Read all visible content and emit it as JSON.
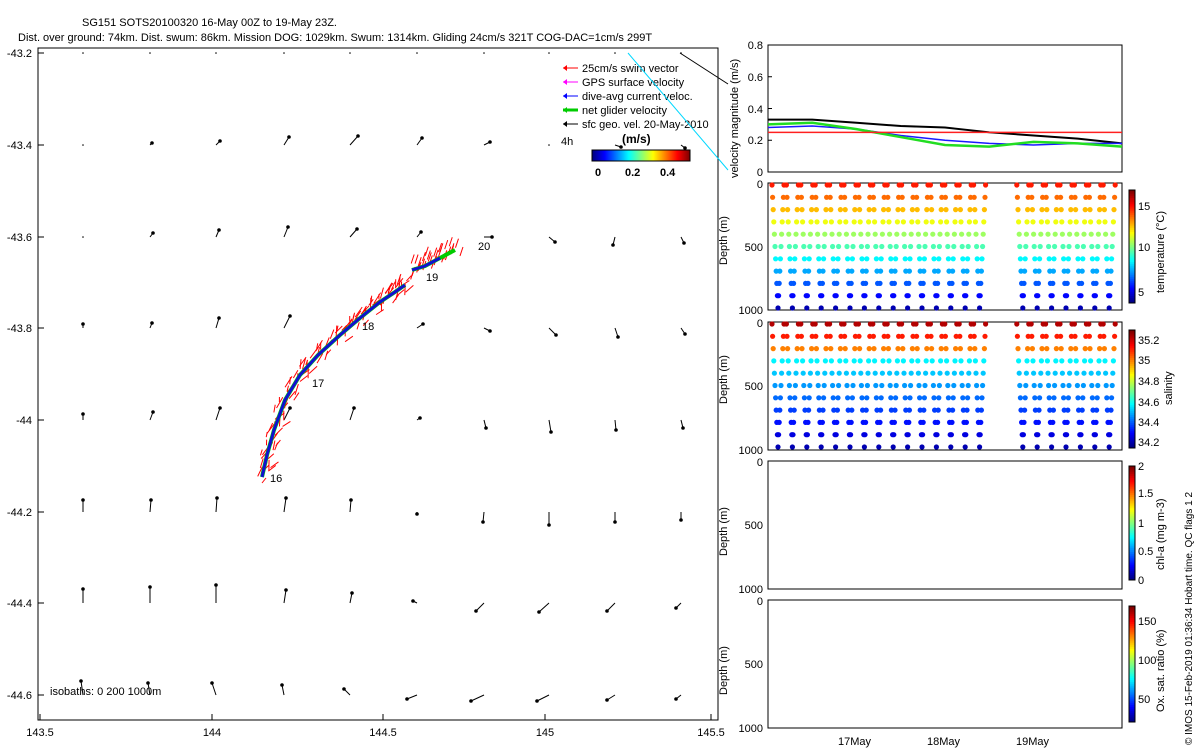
{
  "header": {
    "title_line1": "SG151 SOTS20100320 16-May 00Z to 19-May 23Z.",
    "title_line2": "Dist. over ground: 74km. Dist. swum: 86km. Mission DOG: 1029km. Swum: 1314km. Gliding 24cm/s 321T COG-DAC=1cm/s 299T"
  },
  "map": {
    "legend": [
      "25cm/s swim vector",
      "GPS surface velocity",
      "dive-avg current veloc.",
      "net glider velocity",
      "sfc geo. vel. 20-May-2010"
    ],
    "legend_colors": [
      "#ff0000",
      "#ff00ff",
      "#0000ff",
      "#00cc00",
      "#000000"
    ],
    "legend_note": "4h",
    "colorbar_title": "(m/s)",
    "colorbar_ticks": [
      "0",
      "0.2",
      "0.4"
    ],
    "isobaths_label": "isobaths: 0   200   1000m",
    "day_labels": [
      "16",
      "17",
      "18",
      "19",
      "20"
    ],
    "x_ticks": [
      "143.5",
      "144",
      "144.5",
      "145",
      "145.5"
    ],
    "y_ticks": [
      "-43.2",
      "-43.4",
      "-43.6",
      "-43.8",
      "-44",
      "-44.2",
      "-44.4",
      "-44.6"
    ]
  },
  "panels": {
    "velocity_ylabel": "velocity magnitude (m/s)",
    "velocity_yticks": [
      "0",
      "0.2",
      "0.4",
      "0.6",
      "0.8"
    ],
    "depth_label": "Depth (m)",
    "depth_ticks": [
      "0",
      "500",
      "1000"
    ],
    "temp_label": "temperature (°C)",
    "temp_ticks": [
      "15",
      "10",
      "5"
    ],
    "sal_label": "salinity",
    "sal_ticks": [
      "35.2",
      "35",
      "34.8",
      "34.6",
      "34.4",
      "34.2"
    ],
    "chl_label": "chl-a (mg m-3)",
    "chl_ticks": [
      "2",
      "1.5",
      "1",
      "0.5",
      "0"
    ],
    "ox_label": "Ox. sat. ratio (%)",
    "ox_ticks": [
      "150",
      "100",
      "50"
    ],
    "x_ticks": [
      "17May",
      "18May",
      "19May"
    ],
    "footer": "© IMOS 15-Feb-2019 01:36:34 Hobart time. QC flags 1  2"
  },
  "chart_data": {
    "type": "line",
    "title": "SG151 SOTS20100320 16-May 00Z to 19-May 23Z.",
    "xlabel": "",
    "ylabel": "velocity magnitude (m/s)",
    "ylim": [
      0,
      0.8
    ],
    "x": [
      0,
      0.5,
      1,
      1.5,
      2,
      2.5,
      3,
      3.5,
      4
    ],
    "series": [
      {
        "name": "black",
        "values": [
          0.33,
          0.33,
          0.31,
          0.29,
          0.28,
          0.25,
          0.23,
          0.21,
          0.18
        ]
      },
      {
        "name": "blue",
        "values": [
          0.28,
          0.29,
          0.27,
          0.23,
          0.2,
          0.18,
          0.17,
          0.18,
          0.18
        ]
      },
      {
        "name": "green",
        "values": [
          0.3,
          0.31,
          0.27,
          0.22,
          0.17,
          0.16,
          0.19,
          0.18,
          0.16
        ]
      },
      {
        "name": "red",
        "values": [
          0.25,
          0.25,
          0.25,
          0.25,
          0.25,
          0.25,
          0.25,
          0.25,
          0.25
        ]
      }
    ]
  }
}
